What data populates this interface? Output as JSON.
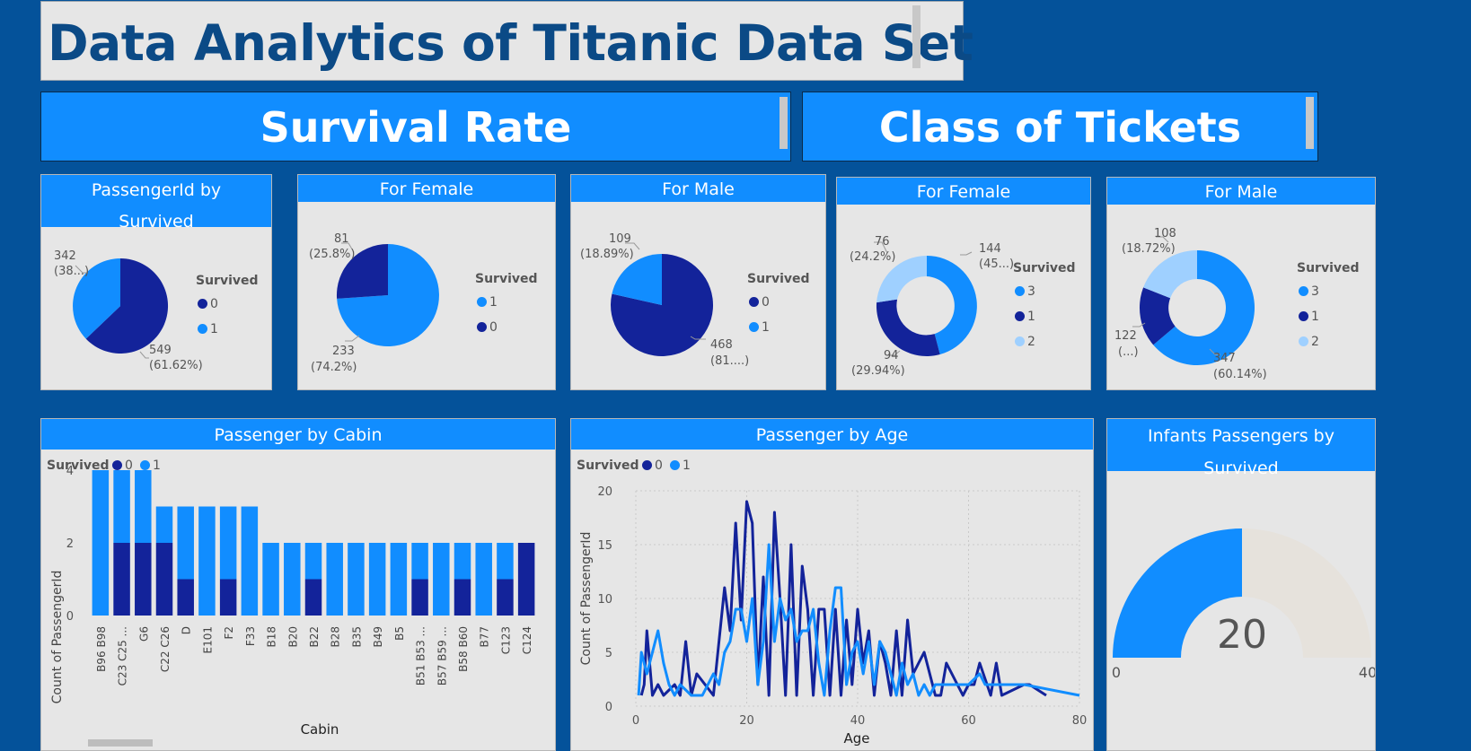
{
  "title": "Data Analytics of Titanic Data Set",
  "banners": {
    "survival": "Survival Rate",
    "class": "Class of Tickets"
  },
  "colors": {
    "dark": "#13239a",
    "light": "#118dff",
    "pale": "#9fd0ff",
    "bg": "#04529a",
    "card": "#e6e6e6",
    "track": "#e6e2dc"
  },
  "pies": {
    "survived": {
      "title_line1": "PassengerId by",
      "title_line2": "Survived",
      "legend_title": "Survived",
      "legend": [
        {
          "label": "0",
          "color": "dark"
        },
        {
          "label": "1",
          "color": "light"
        }
      ],
      "labels": [
        {
          "value": "342",
          "pct": "(38...)"
        },
        {
          "value": "549",
          "pct": "(61.62%)"
        }
      ]
    },
    "female": {
      "title": "For Female",
      "legend_title": "Survived",
      "legend": [
        {
          "label": "1",
          "color": "light"
        },
        {
          "label": "0",
          "color": "dark"
        }
      ],
      "labels": [
        {
          "value": "81",
          "pct": "(25.8%)"
        },
        {
          "value": "233",
          "pct": "(74.2%)"
        }
      ]
    },
    "male": {
      "title": "For Male",
      "legend_title": "Survived",
      "legend": [
        {
          "label": "0",
          "color": "dark"
        },
        {
          "label": "1",
          "color": "light"
        }
      ],
      "labels": [
        {
          "value": "109",
          "pct": "(18.89%)"
        },
        {
          "value": "468",
          "pct": "(81....)"
        }
      ]
    },
    "class_female": {
      "title": "For Female",
      "legend_title": "Survived",
      "legend": [
        {
          "label": "3",
          "color": "light"
        },
        {
          "label": "1",
          "color": "dark"
        },
        {
          "label": "2",
          "color": "pale"
        }
      ],
      "labels": [
        {
          "value": "76",
          "pct": "(24.2%)"
        },
        {
          "value": "144",
          "pct": "(45...)"
        },
        {
          "value": "94",
          "pct": "(29.94%)"
        }
      ]
    },
    "class_male": {
      "title": "For Male",
      "legend_title": "Survived",
      "legend": [
        {
          "label": "3",
          "color": "light"
        },
        {
          "label": "1",
          "color": "dark"
        },
        {
          "label": "2",
          "color": "pale"
        }
      ],
      "labels": [
        {
          "value": "108",
          "pct": "(18.72%)"
        },
        {
          "value": "122",
          "pct": "(...)"
        },
        {
          "value": "347",
          "pct": "(60.14%)"
        }
      ]
    }
  },
  "cabin": {
    "title": "Passenger by Cabin",
    "legend_title": "Survived",
    "legend": [
      "0",
      "1"
    ],
    "ylabel": "Count of PassengerId",
    "xlabel": "Cabin"
  },
  "age": {
    "title": "Passenger by Age",
    "legend_title": "Survived",
    "legend": [
      "0",
      "1"
    ],
    "ylabel": "Count of PassengerId",
    "xlabel": "Age"
  },
  "gauge": {
    "title_line1": "Infants Passengers by",
    "title_line2": "Survived",
    "value": "20",
    "min": "0",
    "max": "40"
  },
  "chart_data": [
    {
      "type": "pie",
      "title": "PassengerId by Survived",
      "legend_title": "Survived",
      "slices": [
        {
          "label": "0",
          "value": 549
        },
        {
          "label": "1",
          "value": 342
        }
      ]
    },
    {
      "type": "pie",
      "title": "For Female",
      "legend_title": "Survived",
      "slices": [
        {
          "label": "1",
          "value": 233
        },
        {
          "label": "0",
          "value": 81
        }
      ]
    },
    {
      "type": "pie",
      "title": "For Male",
      "legend_title": "Survived",
      "slices": [
        {
          "label": "0",
          "value": 468
        },
        {
          "label": "1",
          "value": 109
        }
      ]
    },
    {
      "type": "pie",
      "subtype": "donut",
      "title": "For Female",
      "legend_title": "Survived",
      "slices": [
        {
          "label": "3",
          "value": 144
        },
        {
          "label": "1",
          "value": 94
        },
        {
          "label": "2",
          "value": 76
        }
      ]
    },
    {
      "type": "pie",
      "subtype": "donut",
      "title": "For Male",
      "legend_title": "Survived",
      "slices": [
        {
          "label": "3",
          "value": 347
        },
        {
          "label": "1",
          "value": 122
        },
        {
          "label": "2",
          "value": 108
        }
      ]
    },
    {
      "type": "bar",
      "stacked": true,
      "title": "Passenger by Cabin",
      "xlabel": "Cabin",
      "ylabel": "Count of PassengerId",
      "ylim": [
        0,
        4
      ],
      "yticks": [
        0,
        2,
        4
      ],
      "categories": [
        "B96 B98",
        "C23 C25 ...",
        "G6",
        "C22 C26",
        "D",
        "E101",
        "F2",
        "F33",
        "B18",
        "B20",
        "B22",
        "B28",
        "B35",
        "B49",
        "B5",
        "B51 B53 ...",
        "B57 B59 ...",
        "B58 B60",
        "B77",
        "C123",
        "C124"
      ],
      "series": [
        {
          "name": "0",
          "values": [
            0,
            2,
            2,
            2,
            1,
            0,
            1,
            0,
            0,
            0,
            1,
            0,
            0,
            0,
            0,
            1,
            0,
            1,
            0,
            1,
            2
          ]
        },
        {
          "name": "1",
          "values": [
            4,
            2,
            2,
            1,
            2,
            3,
            2,
            3,
            2,
            2,
            1,
            2,
            2,
            2,
            2,
            1,
            2,
            1,
            2,
            1,
            0
          ]
        }
      ]
    },
    {
      "type": "line",
      "title": "Passenger by Age",
      "xlabel": "Age",
      "ylabel": "Count of PassengerId",
      "xlim": [
        0,
        80
      ],
      "ylim": [
        0,
        20
      ],
      "xticks": [
        0,
        20,
        40,
        60,
        80
      ],
      "yticks": [
        0,
        5,
        10,
        15,
        20
      ],
      "series": [
        {
          "name": "0",
          "x": [
            1,
            1.5,
            2,
            3,
            4,
            5,
            7,
            8,
            9,
            10,
            11,
            14,
            16,
            17,
            18,
            19,
            20,
            21,
            22,
            23,
            24,
            25,
            26,
            27,
            28,
            29,
            30,
            31,
            32,
            33,
            34,
            35,
            36,
            37,
            38,
            39,
            40,
            41,
            42,
            43,
            44,
            45,
            46,
            47,
            48,
            49,
            50,
            51,
            52,
            54,
            55,
            56,
            58,
            59,
            60,
            61,
            62,
            64,
            65,
            66,
            70,
            71,
            74
          ],
          "y": [
            1,
            2,
            7,
            1,
            2,
            1,
            2,
            1,
            6,
            1,
            3,
            1,
            11,
            7,
            17,
            8,
            19,
            17,
            2,
            12,
            1,
            18,
            10,
            1,
            15,
            1,
            13,
            9,
            1,
            9,
            9,
            1,
            9,
            1,
            8,
            2,
            9,
            4,
            7,
            1,
            6,
            4,
            1,
            7,
            1,
            8,
            3,
            4,
            5,
            1,
            1,
            4,
            2,
            1,
            2,
            2,
            4,
            1,
            4,
            1,
            2,
            2,
            1
          ]
        },
        {
          "name": "1",
          "x": [
            0.5,
            1,
            2,
            3,
            4,
            5,
            6,
            7,
            8,
            10,
            12,
            14,
            15,
            16,
            17,
            18,
            19,
            20,
            21,
            22,
            23,
            24,
            25,
            26,
            27,
            28,
            29,
            30,
            31,
            32,
            33,
            34,
            35,
            36,
            37,
            38,
            39,
            40,
            41,
            42,
            43,
            44,
            45,
            46,
            47,
            48,
            49,
            50,
            51,
            52,
            53,
            54,
            56,
            58,
            60,
            62,
            63,
            65,
            70,
            80
          ],
          "y": [
            1,
            5,
            3,
            5,
            7,
            4,
            2,
            1,
            2,
            1,
            1,
            3,
            2,
            5,
            6,
            9,
            9,
            6,
            10,
            2,
            6,
            15,
            6,
            10,
            8,
            9,
            6,
            7,
            7,
            9,
            4,
            1,
            7,
            11,
            11,
            2,
            5,
            6,
            3,
            6,
            2,
            6,
            5,
            3,
            1,
            4,
            2,
            3,
            1,
            2,
            1,
            2,
            2,
            2,
            2,
            3,
            2,
            2,
            2,
            1
          ]
        }
      ]
    },
    {
      "type": "gauge",
      "title": "Infants Passengers by Survived",
      "value": 20,
      "min": 0,
      "max": 40
    }
  ]
}
